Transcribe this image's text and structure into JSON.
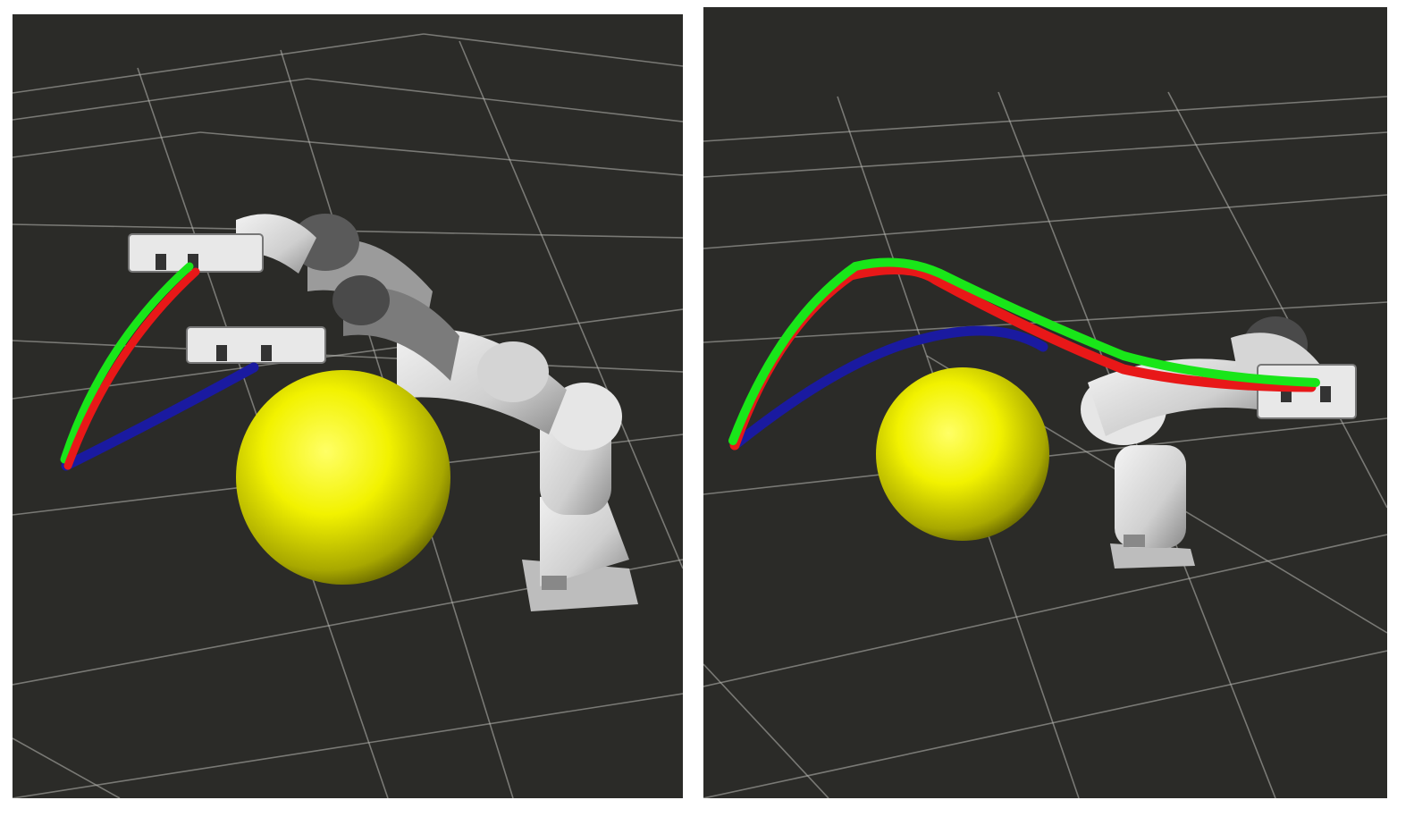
{
  "figure": {
    "panels": [
      {
        "name": "left",
        "scene": "robot-arm-trajectory",
        "robot_poses_shown": 2,
        "obstacle": "sphere",
        "trajectories": [
          "green",
          "red",
          "blue"
        ]
      },
      {
        "name": "right",
        "scene": "robot-arm-trajectory",
        "robot_poses_shown": 1,
        "obstacle": "sphere",
        "trajectories": [
          "green",
          "red",
          "blue"
        ]
      }
    ],
    "colors": {
      "background": "#2b2b28",
      "grid": "#b9b9b4",
      "obstacle": "#f2f200",
      "trajectory_green": "#19e619",
      "trajectory_red": "#e81818",
      "trajectory_blue": "#1a1aa0",
      "robot_body": "#d9d9d9"
    }
  }
}
